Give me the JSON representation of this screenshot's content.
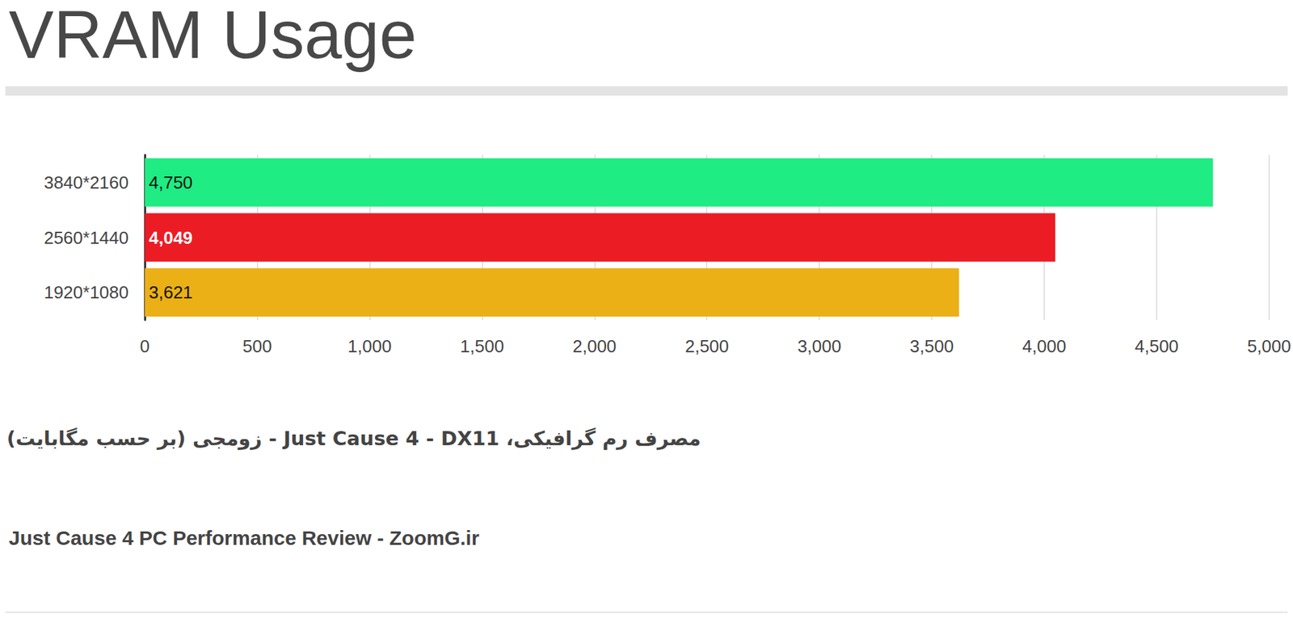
{
  "chart_data": {
    "type": "bar",
    "orientation": "horizontal",
    "title": "VRAM Usage",
    "subtitle": "مصرف رم گرافیکی، Just Cause 4 - DX11 - زومجی (بر حسب مگابایت)",
    "annotations": [
      "Just Cause 4 PC Performance Review - ZoomG.ir"
    ],
    "categories": [
      "3840*2160",
      "2560*1440",
      "1920*1080"
    ],
    "values": [
      4750,
      4049,
      3621
    ],
    "value_labels": [
      "4,750",
      "4,049",
      "3,621"
    ],
    "colors": [
      "#1fec82",
      "#ec1c24",
      "#ebb015"
    ],
    "xlim": [
      0,
      5000
    ],
    "xticks": [
      0,
      500,
      {
        "value": 1000,
        "label": "1,000"
      },
      {
        "value": 1500,
        "label": "1,500"
      },
      {
        "value": 2000,
        "label": "2,000"
      },
      {
        "value": 2500,
        "label": "2,500"
      },
      {
        "value": 3000,
        "label": "3,000"
      },
      {
        "value": 3500,
        "label": "3,500"
      },
      {
        "value": 4000,
        "label": "4,000"
      },
      {
        "value": 4500,
        "label": "4,500"
      },
      {
        "value": 5000,
        "label": "5,000"
      }
    ],
    "grid": true,
    "data_labels": true
  }
}
